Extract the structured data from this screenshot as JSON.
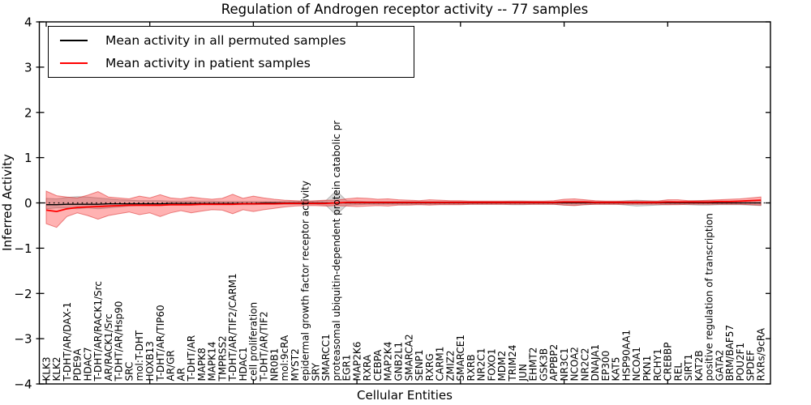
{
  "figure": {
    "title": "Regulation of Androgen receptor activity -- 77 samples",
    "xlabel": "Cellular Entities",
    "ylabel": "Inferred Activity"
  },
  "legend": {
    "items": [
      {
        "label": "Mean activity in all permuted samples",
        "color": "#000000"
      },
      {
        "label": "Mean activity in patient samples",
        "color": "#ff0000"
      }
    ],
    "position": "upper left"
  },
  "chart_data": {
    "type": "line",
    "title": "Regulation of Androgen receptor activity -- 77 samples",
    "xlabel": "Cellular Entities",
    "ylabel": "Inferred Activity",
    "ylim": [
      -4,
      4
    ],
    "yticks": [
      4,
      3,
      2,
      1,
      0,
      -1,
      -2,
      -3,
      -4
    ],
    "xtick_every": 10,
    "grid": false,
    "zero_line_style": "dotted",
    "legend_position": "upper left",
    "categories": [
      "KLK3",
      "KLK2",
      "T-DHT/AR/DAX-1",
      "PDE9A",
      "HDAC7",
      "T-DHT/AR/RACK1/Src",
      "AR/RACK1/Src",
      "T-DHT/AR/Hsp90",
      "SRC",
      "mol:T-DHT",
      "HOXB13",
      "T-DHT/AR/TIP60",
      "AR/GR",
      "AR",
      "T-DHT/AR",
      "MAPK8",
      "MAPK14",
      "TMPRSS2",
      "T-DHT/AR/TIF2/CARM1",
      "HDAC1",
      "cell proliferation",
      "T-DHT/AR/TIF2",
      "NR0B1",
      "mol:9cRA",
      "MYST2",
      "epidermal growth factor receptor activity",
      "SRY",
      "SMARCC1",
      "proteasomal ubiquitin-dependent protein catabolic pr",
      "EGR1",
      "MAP2K6",
      "RXRA",
      "CEBPA",
      "MAP2K4",
      "GNB2L1",
      "SMARCA2",
      "SENP1",
      "RXRG",
      "CARM1",
      "ZMIZ2",
      "SMARCE1",
      "RXRB",
      "NR2C1",
      "FOXO1",
      "MDM2",
      "TRIM24",
      "JUN",
      "EHMT2",
      "GSK3B",
      "APPBP2",
      "NR3C1",
      "NCOA2",
      "NR2C2",
      "DNAJA1",
      "EP300",
      "KAT5",
      "HSP90AA1",
      "NCOA1",
      "PKN1",
      "RCHY1",
      "CREBBP",
      "REL",
      "SIRT1",
      "KAT2B",
      "positive regulation of transcription",
      "GATA2",
      "BRM/BAF57",
      "POU2F1",
      "SPDEF",
      "RXRs/9cRA"
    ],
    "series": [
      {
        "name": "Mean activity in all permuted samples",
        "color": "#000000",
        "band_fill": "rgba(145,145,145,0.35)",
        "band_edge": "rgba(120,120,120,0.45)",
        "values": [
          -0.04,
          -0.04,
          -0.03,
          -0.03,
          -0.03,
          -0.03,
          -0.02,
          -0.02,
          -0.02,
          -0.02,
          -0.02,
          -0.02,
          -0.01,
          -0.01,
          -0.01,
          -0.01,
          -0.01,
          -0.01,
          -0.01,
          -0.01,
          -0.01,
          0,
          0,
          0,
          0,
          0,
          0,
          0,
          0,
          0,
          0,
          0,
          0,
          0,
          0,
          0,
          0,
          0,
          0,
          0,
          0,
          0,
          0,
          0,
          0,
          0,
          0,
          0,
          0,
          0,
          0,
          0,
          0,
          0,
          0,
          0,
          0,
          0,
          0,
          0,
          0,
          0,
          0,
          0,
          0,
          0,
          0,
          0,
          0,
          0
        ],
        "band_upper": [
          0.1,
          0.09,
          0.12,
          0.14,
          0.13,
          0.11,
          0.09,
          0.07,
          0.06,
          0.05,
          0.05,
          0.05,
          0.04,
          0.04,
          0.04,
          0.04,
          0.04,
          0.03,
          0.03,
          0.03,
          0.03,
          0.03,
          0.03,
          0.03,
          0.03,
          0.03,
          0.03,
          0.05,
          0.27,
          0.05,
          0.04,
          0.03,
          0.03,
          0.03,
          0.03,
          0.03,
          0.03,
          0.03,
          0.03,
          0.03,
          0.03,
          0.03,
          0.03,
          0.03,
          0.03,
          0.04,
          0.04,
          0.03,
          0.03,
          0.03,
          0.04,
          0.04,
          0.04,
          0.03,
          0.03,
          0.03,
          0.05,
          0.06,
          0.05,
          0.04,
          0.04,
          0.03,
          0.04,
          0.05,
          0.05,
          0.04,
          0.04,
          0.04,
          0.05,
          0.06
        ],
        "band_lower": [
          -0.13,
          -0.11,
          -0.11,
          -0.13,
          -0.11,
          -0.13,
          -0.11,
          -0.09,
          -0.07,
          -0.06,
          -0.06,
          -0.06,
          -0.05,
          -0.05,
          -0.05,
          -0.04,
          -0.04,
          -0.04,
          -0.04,
          -0.04,
          -0.04,
          -0.03,
          -0.03,
          -0.03,
          -0.03,
          -0.03,
          -0.03,
          -0.05,
          -0.27,
          -0.05,
          -0.04,
          -0.03,
          -0.03,
          -0.03,
          -0.03,
          -0.03,
          -0.03,
          -0.03,
          -0.03,
          -0.03,
          -0.03,
          -0.03,
          -0.03,
          -0.03,
          -0.03,
          -0.04,
          -0.04,
          -0.03,
          -0.03,
          -0.03,
          -0.05,
          -0.05,
          -0.04,
          -0.03,
          -0.03,
          -0.03,
          -0.05,
          -0.07,
          -0.06,
          -0.05,
          -0.04,
          -0.03,
          -0.04,
          -0.05,
          -0.05,
          -0.04,
          -0.04,
          -0.04,
          -0.05,
          -0.06
        ]
      },
      {
        "name": "Mean activity in patient samples",
        "color": "#ff0000",
        "band_fill": "rgba(255,0,0,0.30)",
        "band_edge": "rgba(215,25,25,0.50)",
        "values": [
          -0.16,
          -0.19,
          -0.13,
          -0.1,
          -0.09,
          -0.08,
          -0.07,
          -0.06,
          -0.05,
          -0.05,
          -0.05,
          -0.05,
          -0.04,
          -0.04,
          -0.04,
          -0.03,
          -0.03,
          -0.03,
          -0.03,
          -0.02,
          -0.02,
          -0.02,
          -0.02,
          -0.01,
          -0.01,
          -0.01,
          -0.01,
          -0.01,
          0.0,
          0.01,
          0.01,
          0.01,
          0.01,
          0.01,
          0.01,
          0.01,
          0.01,
          0.01,
          0.01,
          0.01,
          0.01,
          0.01,
          0.01,
          0.01,
          0.01,
          0.01,
          0.01,
          0.01,
          0.01,
          0.01,
          0.02,
          0.02,
          0.02,
          0.01,
          0.01,
          0.01,
          0.01,
          0.01,
          0.01,
          0.01,
          0.02,
          0.02,
          0.02,
          0.02,
          0.02,
          0.03,
          0.03,
          0.04,
          0.05,
          0.06
        ],
        "band_upper": [
          0.26,
          0.16,
          0.13,
          0.11,
          0.17,
          0.25,
          0.13,
          0.11,
          0.09,
          0.15,
          0.11,
          0.18,
          0.11,
          0.09,
          0.13,
          0.1,
          0.08,
          0.1,
          0.19,
          0.1,
          0.15,
          0.11,
          0.08,
          0.06,
          0.05,
          0.04,
          0.05,
          0.06,
          0.06,
          0.09,
          0.11,
          0.1,
          0.08,
          0.09,
          0.07,
          0.06,
          0.05,
          0.07,
          0.06,
          0.05,
          0.05,
          0.04,
          0.04,
          0.04,
          0.04,
          0.04,
          0.04,
          0.04,
          0.04,
          0.05,
          0.08,
          0.09,
          0.07,
          0.05,
          0.04,
          0.04,
          0.04,
          0.04,
          0.04,
          0.04,
          0.07,
          0.07,
          0.05,
          0.05,
          0.06,
          0.07,
          0.08,
          0.09,
          0.11,
          0.13
        ],
        "band_lower": [
          -0.46,
          -0.54,
          -0.3,
          -0.22,
          -0.28,
          -0.36,
          -0.28,
          -0.24,
          -0.2,
          -0.26,
          -0.22,
          -0.3,
          -0.22,
          -0.17,
          -0.22,
          -0.18,
          -0.15,
          -0.16,
          -0.24,
          -0.15,
          -0.19,
          -0.15,
          -0.12,
          -0.09,
          -0.07,
          -0.06,
          -0.06,
          -0.07,
          -0.06,
          -0.07,
          -0.08,
          -0.07,
          -0.06,
          -0.07,
          -0.05,
          -0.05,
          -0.04,
          -0.05,
          -0.04,
          -0.04,
          -0.04,
          -0.03,
          -0.03,
          -0.03,
          -0.03,
          -0.03,
          -0.03,
          -0.03,
          -0.03,
          -0.03,
          -0.05,
          -0.06,
          -0.04,
          -0.03,
          -0.03,
          -0.03,
          -0.03,
          -0.03,
          -0.03,
          -0.03,
          -0.04,
          -0.04,
          -0.03,
          -0.03,
          -0.03,
          -0.03,
          -0.03,
          -0.03,
          -0.04,
          -0.05
        ]
      }
    ]
  },
  "colors": {
    "patient_line": "#ff0000",
    "permuted_line": "#000000",
    "axis": "#000000",
    "background": "#ffffff"
  }
}
